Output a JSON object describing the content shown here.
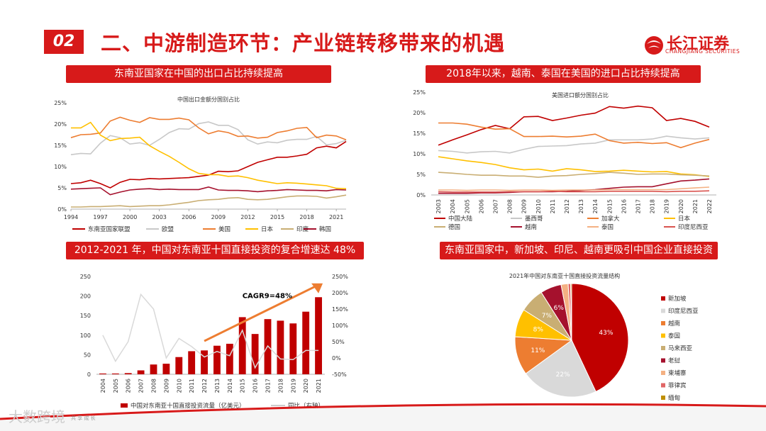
{
  "header": {
    "section_number": "02",
    "title": "二、中游制造环节：产业链转移带来的机遇",
    "logo_text": "长江证券",
    "logo_sub": "CHANGJIANG SECURITIES"
  },
  "panels": {
    "p1_title": "东南亚国家在中国的出口占比持续提高",
    "p2_title": "2018年以来，越南、泰国在美国的进口占比持续提高",
    "p3_title": "2012-2021 年，中国对东南亚十国直接投资的复合增速达 48%",
    "p4_title": "东南亚国家中，新加坡、印尼、越南更吸引中国企业直接投资"
  },
  "footer": {
    "watermark": "大数跨境",
    "small_text": "共 享 成 长"
  },
  "colors": {
    "brand_red": "#d71a1a"
  },
  "chart_data": [
    {
      "type": "line",
      "title": "中国出口金额分国别占比",
      "x": [
        1994,
        1995,
        1996,
        1997,
        1998,
        1999,
        2000,
        2001,
        2002,
        2003,
        2004,
        2005,
        2006,
        2007,
        2008,
        2009,
        2010,
        2011,
        2012,
        2013,
        2014,
        2015,
        2016,
        2017,
        2018,
        2019,
        2020,
        2021,
        2022
      ],
      "xticks": [
        "1994",
        "1997",
        "2000",
        "2003",
        "2006",
        "2009",
        "2012",
        "2015",
        "2018",
        "2021"
      ],
      "ylim": [
        0,
        25
      ],
      "yticks": [
        "0%",
        "5%",
        "10%",
        "15%",
        "20%",
        "25%"
      ],
      "series": [
        {
          "name": "东南亚国家联盟",
          "color": "#c00000",
          "values": [
            6.0,
            6.2,
            6.8,
            6.0,
            5.0,
            6.3,
            7.0,
            6.9,
            7.2,
            7.1,
            7.2,
            7.3,
            7.4,
            7.7,
            8.0,
            8.9,
            8.8,
            9.0,
            10.0,
            11.0,
            11.6,
            12.2,
            12.2,
            12.5,
            12.9,
            14.4,
            14.8,
            14.4,
            15.9
          ]
        },
        {
          "name": "欧盟",
          "color": "#c8c8c8",
          "values": [
            12.8,
            13.1,
            13.0,
            15.5,
            17.3,
            16.8,
            15.3,
            15.6,
            15.0,
            16.4,
            18.0,
            18.9,
            18.8,
            20.1,
            20.5,
            19.7,
            19.7,
            18.7,
            16.3,
            15.3,
            15.8,
            15.6,
            16.2,
            16.4,
            16.4,
            17.1,
            15.1,
            15.4,
            16.2
          ]
        },
        {
          "name": "美国",
          "color": "#ed7d31",
          "values": [
            16.8,
            17.5,
            17.6,
            17.9,
            20.7,
            21.6,
            20.9,
            20.4,
            21.5,
            21.1,
            21.1,
            21.4,
            21.0,
            19.1,
            17.7,
            18.4,
            18.0,
            17.1,
            17.2,
            16.7,
            16.9,
            18.0,
            18.4,
            19.0,
            19.2,
            16.8,
            17.4,
            17.2,
            16.3
          ]
        },
        {
          "name": "日本",
          "color": "#ffc000",
          "values": [
            19.1,
            19.1,
            20.4,
            17.4,
            16.1,
            16.6,
            16.7,
            16.9,
            14.9,
            13.6,
            12.4,
            11.0,
            9.5,
            8.4,
            8.1,
            8.1,
            7.7,
            7.8,
            7.4,
            6.8,
            6.4,
            6.0,
            6.2,
            6.1,
            5.9,
            5.7,
            5.5,
            4.9,
            4.8
          ]
        },
        {
          "name": "印度",
          "color": "#c9ae73",
          "values": [
            0.5,
            0.5,
            0.6,
            0.6,
            0.7,
            0.8,
            0.6,
            0.7,
            0.8,
            0.8,
            1.0,
            1.3,
            1.6,
            2.0,
            2.2,
            2.3,
            2.6,
            2.7,
            2.3,
            2.2,
            2.3,
            2.6,
            2.9,
            3.1,
            3.1,
            3.0,
            2.6,
            2.9,
            3.3
          ]
        },
        {
          "name": "韩国",
          "color": "#a5112d",
          "values": [
            4.7,
            4.8,
            4.9,
            5.0,
            3.4,
            4.0,
            4.5,
            4.7,
            4.8,
            4.6,
            4.7,
            4.6,
            4.6,
            4.6,
            5.2,
            4.5,
            4.4,
            4.4,
            4.3,
            4.1,
            4.3,
            4.4,
            4.6,
            4.5,
            4.4,
            4.4,
            4.3,
            4.6,
            4.5
          ]
        }
      ]
    },
    {
      "type": "line",
      "title": "美国进口额分国别占比",
      "x": [
        "2003",
        "2004",
        "2005",
        "2006",
        "2007",
        "2008",
        "2009",
        "2010",
        "2011",
        "2012",
        "2013",
        "2014",
        "2015",
        "2016",
        "2017",
        "2018",
        "2019",
        "2020",
        "2021",
        "2022"
      ],
      "ylim": [
        0,
        25
      ],
      "yticks": [
        "0%",
        "5%",
        "10%",
        "15%",
        "20%",
        "25%"
      ],
      "series": [
        {
          "name": "中国大陆",
          "color": "#c00000",
          "values": [
            12.1,
            13.4,
            14.6,
            15.9,
            16.9,
            16.1,
            19.0,
            19.1,
            18.1,
            18.7,
            19.4,
            19.9,
            21.5,
            21.1,
            21.6,
            21.2,
            18.1,
            18.6,
            17.9,
            16.5
          ]
        },
        {
          "name": "墨西哥",
          "color": "#c8c8c8",
          "values": [
            10.8,
            10.6,
            10.2,
            10.5,
            10.6,
            10.2,
            11.1,
            11.8,
            11.9,
            12.0,
            12.4,
            12.6,
            13.4,
            13.4,
            13.4,
            13.6,
            14.3,
            13.9,
            13.6,
            13.9
          ]
        },
        {
          "name": "加拿大",
          "color": "#ed7d31",
          "values": [
            17.5,
            17.5,
            17.2,
            16.5,
            16.0,
            16.1,
            14.2,
            14.2,
            14.3,
            14.1,
            14.3,
            14.8,
            13.2,
            12.6,
            12.8,
            12.5,
            12.7,
            11.5,
            12.6,
            13.5
          ]
        },
        {
          "name": "日本",
          "color": "#ffc000",
          "values": [
            9.3,
            8.8,
            8.3,
            7.9,
            7.4,
            6.6,
            6.1,
            6.3,
            5.8,
            6.4,
            6.1,
            5.7,
            5.8,
            6.0,
            5.8,
            5.6,
            5.7,
            5.1,
            4.9,
            4.5
          ]
        },
        {
          "name": "德国",
          "color": "#c9ae73",
          "values": [
            5.5,
            5.3,
            5.0,
            4.8,
            4.8,
            4.6,
            4.6,
            4.3,
            4.6,
            4.7,
            5.0,
            5.2,
            5.5,
            5.3,
            5.0,
            5.1,
            5.1,
            4.9,
            4.8,
            4.6
          ]
        },
        {
          "name": "越南",
          "color": "#a5112d",
          "values": [
            0.4,
            0.4,
            0.4,
            0.5,
            0.5,
            0.6,
            0.8,
            0.8,
            0.8,
            0.9,
            1.1,
            1.3,
            1.6,
            1.9,
            2.0,
            2.0,
            2.7,
            3.4,
            3.6,
            3.9
          ]
        },
        {
          "name": "泰国",
          "color": "#f4b183",
          "values": [
            1.2,
            1.2,
            1.1,
            1.2,
            1.2,
            1.1,
            1.2,
            1.2,
            1.1,
            1.2,
            1.2,
            1.2,
            1.3,
            1.3,
            1.3,
            1.3,
            1.3,
            1.5,
            1.7,
            1.9
          ]
        },
        {
          "name": "印度尼西亚",
          "color": "#d9534f",
          "values": [
            0.8,
            0.7,
            0.7,
            0.7,
            0.7,
            0.8,
            0.8,
            0.8,
            0.9,
            0.8,
            0.8,
            0.8,
            0.9,
            0.9,
            0.9,
            0.9,
            0.8,
            0.9,
            0.9,
            1.0
          ]
        }
      ]
    },
    {
      "type": "bar",
      "categories": [
        "2004",
        "2005",
        "2006",
        "2007",
        "2008",
        "2009",
        "2010",
        "2011",
        "2012",
        "2013",
        "2014",
        "2015",
        "2016",
        "2017",
        "2018",
        "2019",
        "2020",
        "2021"
      ],
      "series": [
        {
          "name": "中国对东南亚十国直接投资流量（亿美元）",
          "axis": "left",
          "color": "#c00000",
          "values": [
            2,
            2,
            3,
            10,
            25,
            27,
            44,
            59,
            61,
            73,
            78,
            146,
            103,
            141,
            137,
            130,
            160,
            197
          ]
        },
        {
          "name": "同比（右轴）",
          "axis": "right",
          "color": "#d9d9d9",
          "values": [
            70,
            -10,
            50,
            195,
            150,
            0,
            60,
            35,
            3,
            20,
            7,
            85,
            -30,
            37,
            -3,
            -5,
            23,
            23
          ]
        }
      ],
      "ylim_left": [
        0,
        250
      ],
      "yticks_left": [
        "0",
        "50",
        "100",
        "150",
        "200",
        "250"
      ],
      "ylim_right": [
        -50,
        250
      ],
      "yticks_right": [
        "-50%",
        "0%",
        "50%",
        "100%",
        "150%",
        "200%",
        "250%"
      ],
      "annotation": "CAGR9=48%"
    },
    {
      "type": "pie",
      "title": "2021年中国对东南亚十国直接投资流量结构",
      "slices": [
        {
          "label": "新加坡",
          "value": 43,
          "color": "#c00000",
          "shown": "43%"
        },
        {
          "label": "印度尼西亚",
          "value": 22,
          "color": "#d9d9d9",
          "shown": "22%"
        },
        {
          "label": "越南",
          "value": 11,
          "color": "#ed7d31",
          "shown": "11%"
        },
        {
          "label": "泰国",
          "value": 8,
          "color": "#ffc000",
          "shown": "8%"
        },
        {
          "label": "马来西亚",
          "value": 7,
          "color": "#c9ae73",
          "shown": "7%"
        },
        {
          "label": "老挝",
          "value": 6,
          "color": "#a5112d",
          "shown": "6%"
        },
        {
          "label": "柬埔寨",
          "value": 2,
          "color": "#f4b183",
          "shown": ""
        },
        {
          "label": "菲律宾",
          "value": 0.7,
          "color": "#e06666",
          "shown": ""
        },
        {
          "label": "缅甸",
          "value": 0.3,
          "color": "#bf8f00",
          "shown": ""
        }
      ]
    }
  ]
}
